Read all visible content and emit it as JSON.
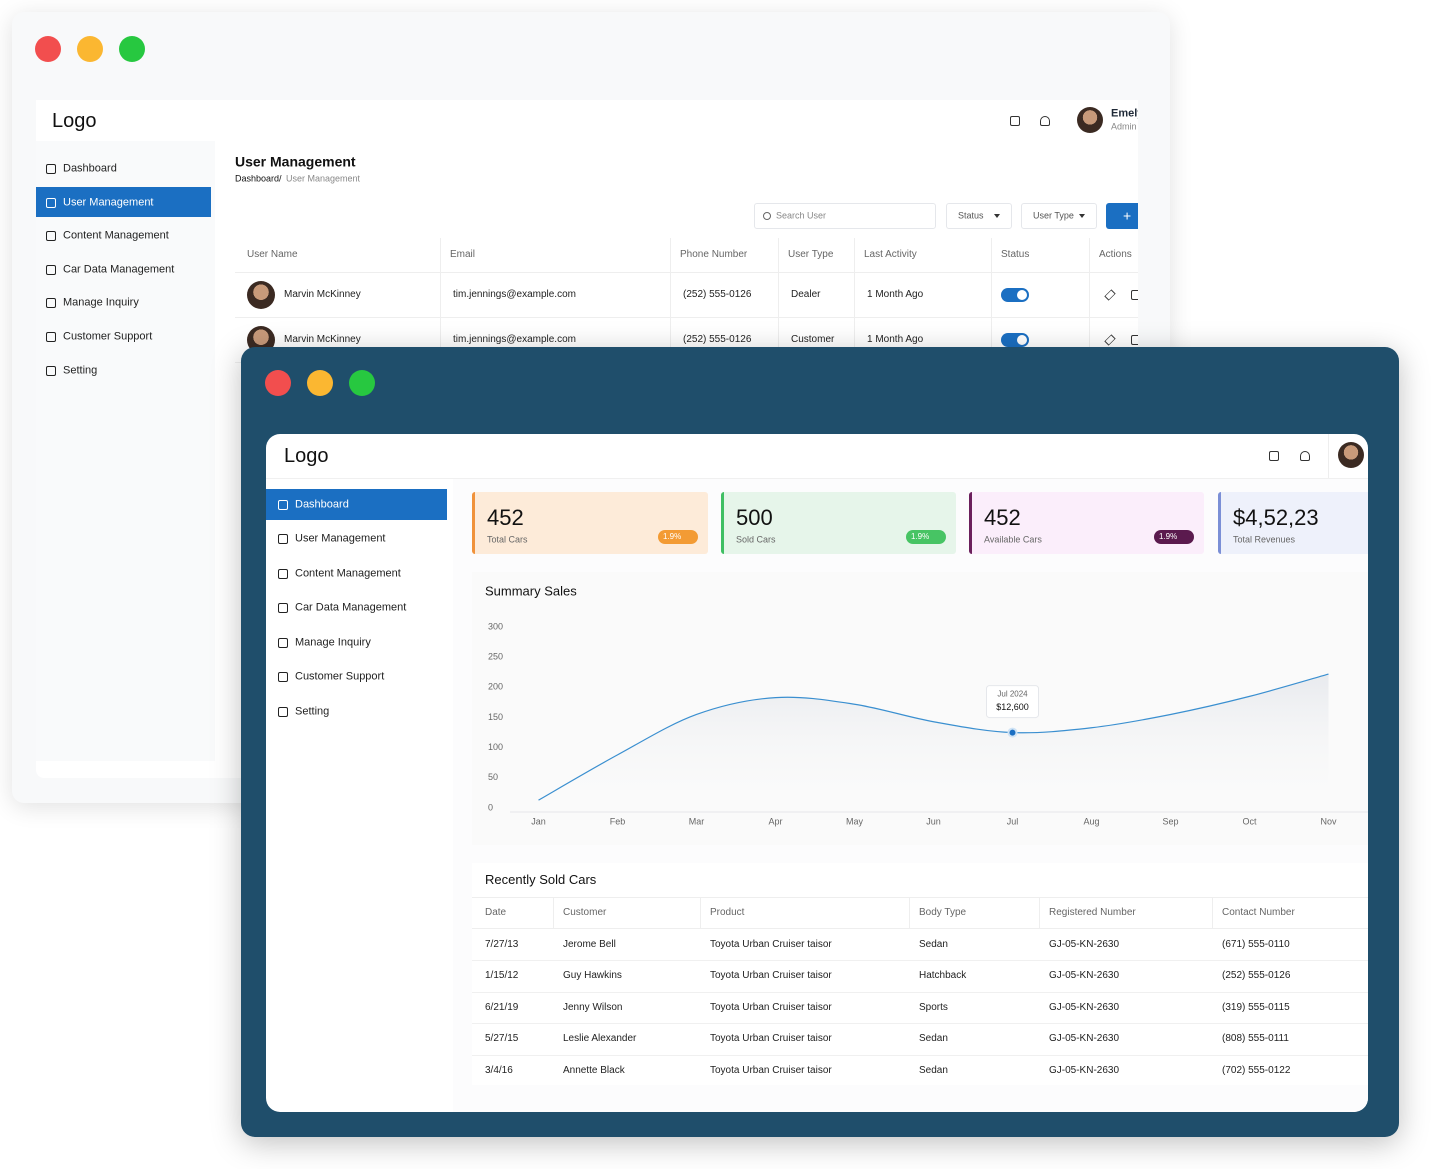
{
  "back_window": {
    "logo": "Logo",
    "user": {
      "name": "Emely",
      "role": "Admin"
    },
    "sidebar": [
      "Dashboard",
      "User Management",
      "Content Management",
      "Car Data Management",
      "Manage Inquiry",
      "Customer Support",
      "Setting"
    ],
    "page_title": "User Management",
    "breadcrumb": {
      "parent": "Dashboard/",
      "current": "User Management"
    },
    "search_placeholder": "Search User",
    "filters": [
      "Status",
      "User Type"
    ],
    "add_button": "+",
    "table": {
      "columns": [
        "User Name",
        "Email",
        "Phone Number",
        "User Type",
        "Last Activity",
        "Status",
        "Actions"
      ],
      "rows": [
        [
          "Marvin McKinney",
          "tim.jennings@example.com",
          "(252) 555-0126",
          "Dealer",
          "1 Month Ago"
        ],
        [
          "Marvin McKinney",
          "tim.jennings@example.com",
          "(252) 555-0126",
          "Customer",
          "1 Month Ago"
        ]
      ]
    }
  },
  "front_window": {
    "logo": "Logo",
    "sidebar": [
      "Dashboard",
      "User Management",
      "Content Management",
      "Car Data Management",
      "Manage Inquiry",
      "Customer Support",
      "Setting"
    ],
    "stats": [
      {
        "value": "452",
        "label": "Total Cars",
        "change": "1.9%"
      },
      {
        "value": "500",
        "label": "Sold Cars",
        "change": "1.9%"
      },
      {
        "value": "452",
        "label": "Available Cars",
        "change": "1.9%"
      },
      {
        "value": "$4,52,23",
        "label": "Total Revenues"
      }
    ],
    "sales_chart": {
      "type": "line",
      "title": "Summary Sales",
      "categories": [
        "Jan",
        "Feb",
        "Mar",
        "Apr",
        "May",
        "Jun",
        "Jul",
        "Aug",
        "Sep",
        "Oct",
        "Nov"
      ],
      "values": [
        13,
        88,
        155,
        183,
        172,
        143,
        125,
        133,
        155,
        185,
        222
      ],
      "color": "#3a8fd0",
      "ylim": [
        0,
        300
      ],
      "yticks": [
        0,
        50,
        100,
        150,
        200,
        250,
        300
      ],
      "tooltip": {
        "category": "Jul 2024",
        "value": "$12,600"
      }
    },
    "sold_cars": {
      "title": "Recently Sold Cars",
      "columns": [
        "Date",
        "Customer",
        "Product",
        "Body Type",
        "Registered Number",
        "Contact Number"
      ],
      "rows": [
        [
          "7/27/13",
          "Jerome Bell",
          "Toyota Urban Cruiser taisor",
          "Sedan",
          "GJ-05-KN-2630",
          "(671) 555-0110"
        ],
        [
          "1/15/12",
          "Guy Hawkins",
          "Toyota Urban Cruiser taisor",
          "Hatchback",
          "GJ-05-KN-2630",
          "(252) 555-0126"
        ],
        [
          "6/21/19",
          "Jenny Wilson",
          "Toyota Urban Cruiser taisor",
          "Sports",
          "GJ-05-KN-2630",
          "(319) 555-0115"
        ],
        [
          "5/27/15",
          "Leslie Alexander",
          "Toyota Urban Cruiser taisor",
          "Sedan",
          "GJ-05-KN-2630",
          "(808) 555-0111"
        ],
        [
          "3/4/16",
          "Annette Black",
          "Toyota Urban Cruiser taisor",
          "Sedan",
          "GJ-05-KN-2630",
          "(702) 555-0122"
        ]
      ]
    }
  }
}
